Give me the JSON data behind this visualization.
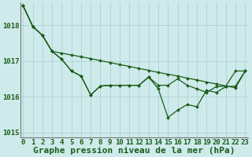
{
  "title": "Graphe pression niveau de la mer (hPa)",
  "xlabel_ticks": [
    "0",
    "1",
    "2",
    "3",
    "4",
    "5",
    "6",
    "7",
    "8",
    "9",
    "10",
    "11",
    "12",
    "13",
    "14",
    "15",
    "16",
    "17",
    "18",
    "19",
    "20",
    "21",
    "22",
    "23"
  ],
  "ylim": [
    1014.85,
    1018.65
  ],
  "xlim": [
    -0.3,
    23.3
  ],
  "yticks": [
    1015,
    1016,
    1017,
    1018
  ],
  "background_color": "#ceeaea",
  "grid_color": "#aacece",
  "line_color": "#1a5c1a",
  "line1": [
    1018.55,
    1017.97,
    1017.72,
    1017.27,
    1017.22,
    1017.17,
    1017.12,
    1017.07,
    1017.01,
    1016.96,
    1016.9,
    1016.85,
    1016.79,
    1016.74,
    1016.68,
    1016.63,
    1016.58,
    1016.52,
    1016.47,
    1016.41,
    1016.36,
    1016.3,
    1016.25,
    1016.72
  ],
  "line2": [
    1018.55,
    1017.97,
    1017.72,
    1017.27,
    1017.05,
    1016.72,
    1016.58,
    1016.05,
    1016.3,
    1016.32,
    1016.32,
    1016.32,
    1016.32,
    1016.55,
    1016.32,
    1016.32,
    1016.5,
    1016.32,
    1016.22,
    1016.12,
    1016.28,
    1016.3,
    1016.72,
    1016.72
  ],
  "line3": [
    1018.55,
    1017.97,
    1017.72,
    1017.27,
    1017.05,
    1016.72,
    1016.58,
    1016.05,
    1016.3,
    1016.32,
    1016.32,
    1016.32,
    1016.32,
    1016.55,
    1016.22,
    1015.42,
    1015.62,
    1015.78,
    1015.72,
    1016.18,
    1016.12,
    1016.28,
    1016.3,
    1016.72
  ],
  "title_fontsize": 8,
  "tick_fontsize": 6.5,
  "marker": "D",
  "markersize": 2.0,
  "linewidth": 0.9
}
